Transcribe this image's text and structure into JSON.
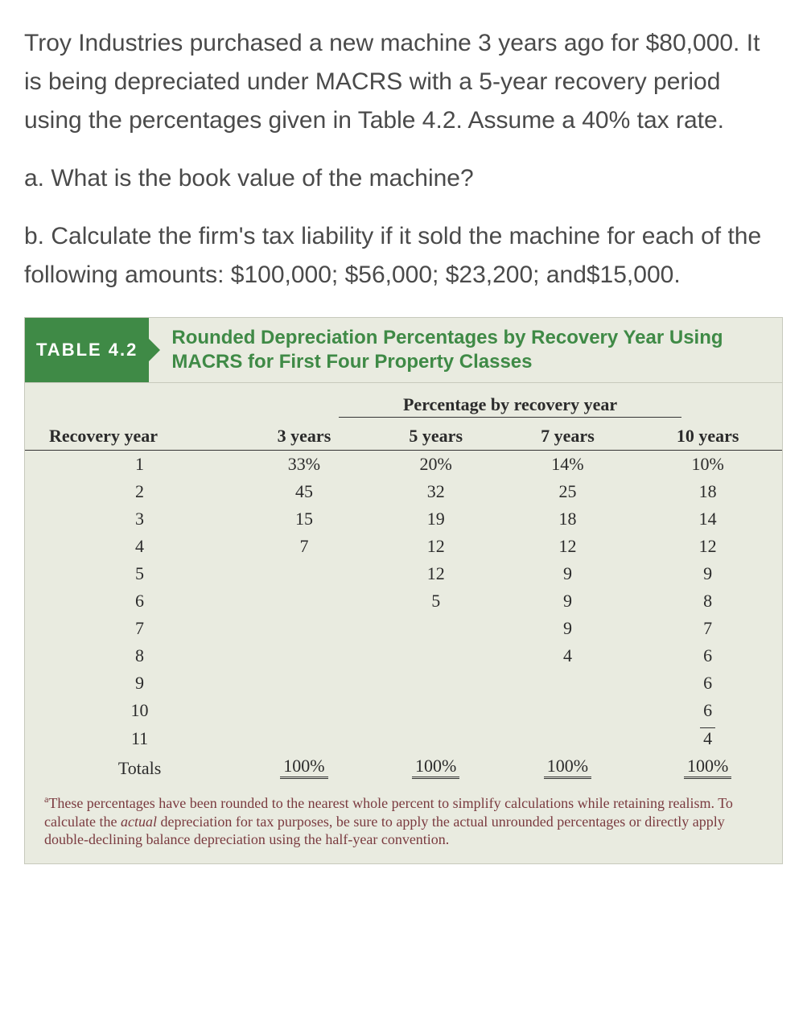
{
  "problem": {
    "intro": "Troy Industries purchased a new machine 3 years ago for $80,000. It is being depreciated under MACRS with a 5-year recovery period using the percentages given in Table 4.2. Assume a 40% tax rate.",
    "part_a": "a. What is the book value of the machine?",
    "part_b": "b. Calculate the firm's tax liability if it sold the machine for each of the following amounts: $100,000; $56,000; $23,200; and$15,000."
  },
  "table": {
    "badge": "TABLE 4.2",
    "caption": "Rounded Depreciation Percentages by Recovery Year Using MACRS for First Four Property Classes",
    "span_header": "Percentage by recovery year",
    "columns": [
      "Recovery year",
      "3 years",
      "5 years",
      "7 years",
      "10 years"
    ],
    "rows": [
      [
        "1",
        "33%",
        "20%",
        "14%",
        "10%"
      ],
      [
        "2",
        "45",
        "32",
        "25",
        "18"
      ],
      [
        "3",
        "15",
        "19",
        "18",
        "14"
      ],
      [
        "4",
        "7",
        "12",
        "12",
        "12"
      ],
      [
        "5",
        "",
        "12",
        "9",
        "9"
      ],
      [
        "6",
        "",
        "5",
        "9",
        "8"
      ],
      [
        "7",
        "",
        "",
        "9",
        "7"
      ],
      [
        "8",
        "",
        "",
        "4",
        "6"
      ],
      [
        "9",
        "",
        "",
        "",
        "6"
      ],
      [
        "10",
        "",
        "",
        "",
        "6"
      ],
      [
        "11",
        "",
        "",
        "",
        "4"
      ]
    ],
    "totals": [
      "Totals",
      "100%",
      "100%",
      "100%",
      "100%"
    ],
    "footnote_marker": "a",
    "footnote_text_1": "These percentages have been rounded to the nearest whole percent to simplify calculations while retaining realism. To calculate the ",
    "footnote_em": "actual",
    "footnote_text_2": " depreciation for tax purposes, be sure to apply the actual unrounded percentages or directly apply double-declining balance depreciation using the half-year convention."
  },
  "style": {
    "badge_bg": "#3f8a46",
    "badge_fg": "#ffffff",
    "table_bg": "#e9ebe0",
    "caption_color": "#3f8a46",
    "footnote_color": "#7a3a3f",
    "body_text_color": "#4a4a4a"
  }
}
